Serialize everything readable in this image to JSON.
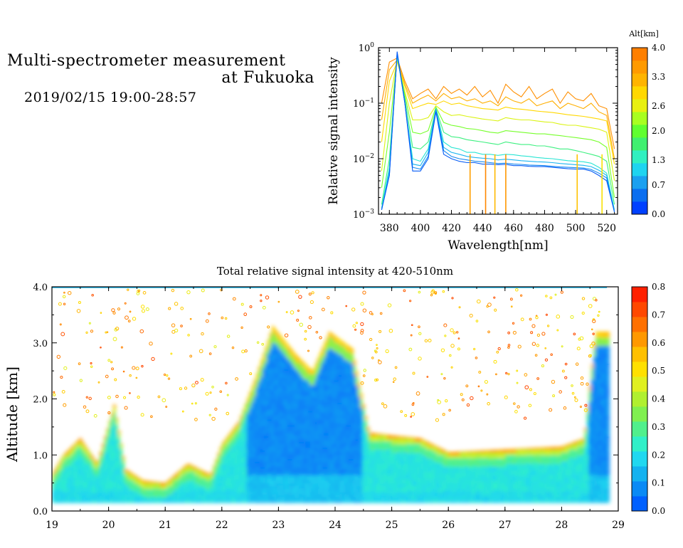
{
  "header": {
    "title_line_1": "Multi-spectrometer measurement",
    "title_line_2": "at Fukuoka",
    "datetime": "2019/02/15 19:00-28:57"
  },
  "chart_data": [
    {
      "type": "line",
      "ylabel": "Relative signal intensity",
      "xlabel": "Wavelength[nm]",
      "x_ticks": [
        "380",
        "400",
        "420",
        "440",
        "460",
        "480",
        "500",
        "520"
      ],
      "xlim": [
        373,
        527
      ],
      "y_scale": "log",
      "ylim": [
        0.001,
        1
      ],
      "y_tick_values": [
        0.001,
        0.01,
        0.1,
        1
      ],
      "colorbar": {
        "title": "Alt[km]",
        "tick_labels": [
          "4.0",
          "3.3",
          "2.6",
          "2.0",
          "1.3",
          "0.7",
          "0.0"
        ],
        "range": [
          0.0,
          4.0
        ],
        "colors": [
          "#0040ff",
          "#0a6ef0",
          "#1aa0f0",
          "#1ed4f0",
          "#30f0c0",
          "#40f070",
          "#60ff30",
          "#a8ff20",
          "#e8f010",
          "#ffd800",
          "#ffb400",
          "#ff9a00",
          "#ff7f00"
        ]
      },
      "x": [
        375,
        380,
        385,
        390,
        395,
        400,
        405,
        410,
        415,
        420,
        425,
        430,
        435,
        440,
        445,
        450,
        455,
        460,
        465,
        470,
        475,
        480,
        485,
        490,
        495,
        500,
        505,
        510,
        515,
        520,
        525
      ],
      "series": [
        {
          "alt": 0.2,
          "values": [
            0.0012,
            0.005,
            0.85,
            0.1,
            0.006,
            0.006,
            0.01,
            0.07,
            0.012,
            0.01,
            0.009,
            0.0085,
            0.0085,
            0.008,
            0.008,
            0.0078,
            0.0079,
            0.0075,
            0.0075,
            0.0073,
            0.0072,
            0.0072,
            0.007,
            0.0068,
            0.0066,
            0.0065,
            0.0065,
            0.006,
            0.005,
            0.004,
            0.0011
          ]
        },
        {
          "alt": 0.5,
          "values": [
            0.0012,
            0.005,
            0.8,
            0.1,
            0.007,
            0.0065,
            0.011,
            0.075,
            0.014,
            0.011,
            0.01,
            0.0095,
            0.009,
            0.0088,
            0.0085,
            0.0082,
            0.0083,
            0.008,
            0.0079,
            0.0077,
            0.0076,
            0.0075,
            0.0073,
            0.0071,
            0.007,
            0.0069,
            0.0068,
            0.0064,
            0.0055,
            0.0045,
            0.0011
          ]
        },
        {
          "alt": 0.8,
          "values": [
            0.0012,
            0.006,
            0.78,
            0.1,
            0.008,
            0.0075,
            0.013,
            0.078,
            0.016,
            0.013,
            0.012,
            0.011,
            0.0105,
            0.0102,
            0.01,
            0.0095,
            0.0098,
            0.0095,
            0.0092,
            0.009,
            0.0088,
            0.0087,
            0.0085,
            0.0082,
            0.008,
            0.0078,
            0.0076,
            0.0072,
            0.0062,
            0.005,
            0.0011
          ]
        },
        {
          "alt": 1.2,
          "values": [
            0.0013,
            0.007,
            0.75,
            0.1,
            0.01,
            0.009,
            0.015,
            0.08,
            0.02,
            0.016,
            0.015,
            0.013,
            0.013,
            0.012,
            0.012,
            0.0115,
            0.012,
            0.0118,
            0.0113,
            0.011,
            0.0105,
            0.0102,
            0.01,
            0.0096,
            0.0092,
            0.009,
            0.0088,
            0.0083,
            0.007,
            0.0055,
            0.0012
          ]
        },
        {
          "alt": 1.6,
          "values": [
            0.0015,
            0.01,
            0.7,
            0.12,
            0.016,
            0.015,
            0.02,
            0.08,
            0.03,
            0.025,
            0.024,
            0.022,
            0.021,
            0.02,
            0.019,
            0.018,
            0.02,
            0.019,
            0.018,
            0.018,
            0.017,
            0.017,
            0.016,
            0.015,
            0.015,
            0.014,
            0.013,
            0.012,
            0.011,
            0.009,
            0.0015
          ]
        },
        {
          "alt": 2.1,
          "values": [
            0.003,
            0.03,
            0.65,
            0.14,
            0.03,
            0.028,
            0.032,
            0.085,
            0.045,
            0.04,
            0.038,
            0.035,
            0.034,
            0.032,
            0.03,
            0.029,
            0.032,
            0.031,
            0.03,
            0.029,
            0.028,
            0.028,
            0.027,
            0.026,
            0.025,
            0.024,
            0.023,
            0.022,
            0.02,
            0.016,
            0.002
          ]
        },
        {
          "alt": 2.6,
          "values": [
            0.006,
            0.1,
            0.6,
            0.16,
            0.05,
            0.05,
            0.055,
            0.09,
            0.07,
            0.06,
            0.062,
            0.058,
            0.055,
            0.052,
            0.05,
            0.048,
            0.055,
            0.052,
            0.05,
            0.05,
            0.048,
            0.046,
            0.045,
            0.042,
            0.04,
            0.04,
            0.038,
            0.036,
            0.034,
            0.03,
            0.004
          ]
        },
        {
          "alt": 3.0,
          "values": [
            0.02,
            0.25,
            0.55,
            0.2,
            0.08,
            0.09,
            0.1,
            0.095,
            0.11,
            0.095,
            0.1,
            0.09,
            0.085,
            0.08,
            0.078,
            0.075,
            0.085,
            0.08,
            0.078,
            0.075,
            0.072,
            0.07,
            0.068,
            0.065,
            0.062,
            0.06,
            0.058,
            0.055,
            0.052,
            0.048,
            0.008
          ]
        },
        {
          "alt": 3.4,
          "values": [
            0.05,
            0.4,
            0.6,
            0.22,
            0.1,
            0.12,
            0.14,
            0.11,
            0.15,
            0.12,
            0.13,
            0.11,
            0.12,
            0.1,
            0.11,
            0.09,
            0.13,
            0.11,
            0.1,
            0.12,
            0.09,
            0.1,
            0.11,
            0.08,
            0.1,
            0.09,
            0.08,
            0.1,
            0.07,
            0.06,
            0.01
          ]
        },
        {
          "alt": 3.8,
          "values": [
            0.1,
            0.55,
            0.65,
            0.25,
            0.12,
            0.15,
            0.18,
            0.12,
            0.2,
            0.15,
            0.18,
            0.14,
            0.2,
            0.13,
            0.17,
            0.1,
            0.22,
            0.16,
            0.13,
            0.2,
            0.12,
            0.15,
            0.18,
            0.1,
            0.16,
            0.12,
            0.11,
            0.15,
            0.09,
            0.08,
            0.015
          ]
        }
      ],
      "dropouts": [
        {
          "alt": 3.6,
          "x": 432
        },
        {
          "alt": 3.9,
          "x": 442
        },
        {
          "alt": 3.3,
          "x": 448
        },
        {
          "alt": 3.7,
          "x": 455
        },
        {
          "alt": 3.2,
          "x": 501
        },
        {
          "alt": 2.9,
          "x": 517
        }
      ]
    },
    {
      "type": "heatmap",
      "title": "Total relative signal intensity at 420-510nm",
      "ylabel": "Altitude [km]",
      "x_ticks": [
        "19",
        "20",
        "21",
        "22",
        "23",
        "24",
        "25",
        "26",
        "27",
        "28",
        "29"
      ],
      "xlim": [
        19,
        29
      ],
      "y_ticks": [
        "0.0",
        "1.0",
        "2.0",
        "3.0",
        "4.0"
      ],
      "ylim": [
        0.0,
        4.0
      ],
      "data_range": {
        "x": [
          19.0,
          28.8
        ],
        "y": [
          0.15,
          4.0
        ]
      },
      "colorbar": {
        "tick_labels": [
          "0.8",
          "0.7",
          "0.6",
          "0.5",
          "0.4",
          "0.3",
          "0.2",
          "0.1",
          "0.0"
        ],
        "range": [
          0.0,
          0.8
        ],
        "colors": [
          "#0060ff",
          "#0a8af5",
          "#14b2f0",
          "#20d8f0",
          "#30f0c8",
          "#50f08c",
          "#80f050",
          "#b0f030",
          "#e0f020",
          "#ffe000",
          "#ffc000",
          "#ff9800",
          "#ff7000",
          "#ff4800",
          "#ff2000"
        ]
      },
      "cloud_base_km": [
        {
          "t": 19.0,
          "alt": 0.65
        },
        {
          "t": 19.2,
          "alt": 1.0
        },
        {
          "t": 19.5,
          "alt": 1.3
        },
        {
          "t": 19.8,
          "alt": 0.85
        },
        {
          "t": 20.1,
          "alt": 1.9
        },
        {
          "t": 20.3,
          "alt": 0.75
        },
        {
          "t": 20.6,
          "alt": 0.55
        },
        {
          "t": 21.0,
          "alt": 0.5
        },
        {
          "t": 21.4,
          "alt": 0.85
        },
        {
          "t": 21.8,
          "alt": 0.65
        },
        {
          "t": 22.0,
          "alt": 1.2
        },
        {
          "t": 22.3,
          "alt": 1.6
        },
        {
          "t": 22.6,
          "alt": 2.4
        },
        {
          "t": 22.9,
          "alt": 3.3
        },
        {
          "t": 23.3,
          "alt": 2.8
        },
        {
          "t": 23.6,
          "alt": 2.5
        },
        {
          "t": 23.9,
          "alt": 3.2
        },
        {
          "t": 24.3,
          "alt": 2.9
        },
        {
          "t": 24.6,
          "alt": 1.4
        },
        {
          "t": 25.0,
          "alt": 1.35
        },
        {
          "t": 25.5,
          "alt": 1.3
        },
        {
          "t": 26.0,
          "alt": 1.05
        },
        {
          "t": 27.0,
          "alt": 1.1
        },
        {
          "t": 28.0,
          "alt": 1.15
        },
        {
          "t": 28.4,
          "alt": 1.3
        },
        {
          "t": 28.6,
          "alt": 3.2
        },
        {
          "t": 28.8,
          "alt": 3.2
        }
      ]
    }
  ]
}
